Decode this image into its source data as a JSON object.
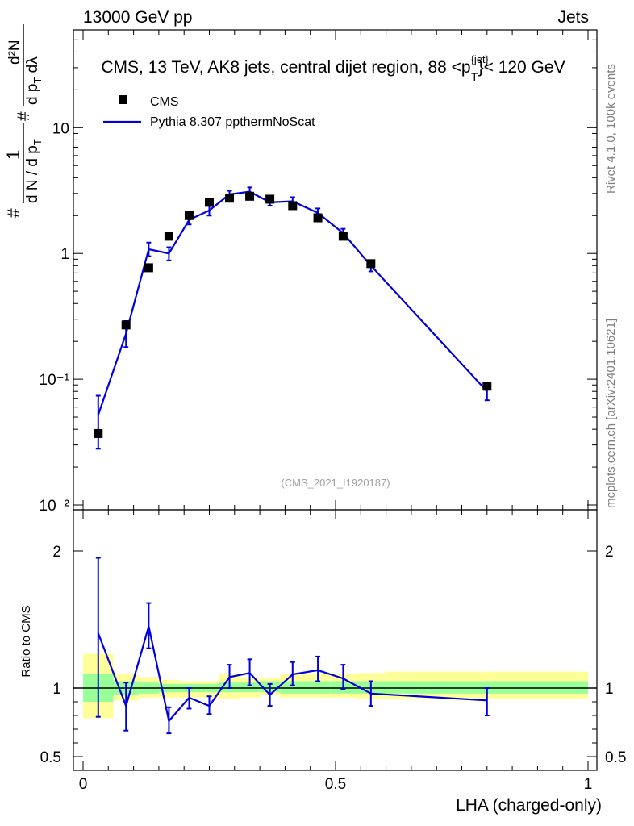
{
  "header": {
    "left": "13000 GeV pp",
    "right": "Jets"
  },
  "side_labels": {
    "rivet": "Rivet 4.1.0,  100k events",
    "mcplots": "mcplots.cern.ch [arXiv:2401.10621]"
  },
  "watermark": "(CMS_2021_I1920187)",
  "colors": {
    "data": "#000000",
    "mc": "#0000dd",
    "band_inner": "#99ff99",
    "band_outer": "#ffff99"
  },
  "chart_data": [
    {
      "type": "scatter",
      "panel": "main",
      "title": "CMS, 13 TeV, AK8 jets, central dijet region, 88 <p_T^{jet}< 120 GeV",
      "title_parts": {
        "pre": "CMS, 13 TeV, AK8 jets, central dijet region, 88 <p",
        "sup": "{jet}",
        "sub": "T",
        "post": "}< 120 GeV"
      },
      "ylabel_parts": {
        "num_hash": "#",
        "num_one": "1",
        "den": "d N / d p",
        "den_sub": "T",
        "right_hash": "#",
        "right_num": "d²N",
        "right_den": "d p",
        "right_den_sub": "T",
        "right_den_tail": " dλ"
      },
      "yscale": "log",
      "ylim": [
        0.01,
        60
      ],
      "xlim": [
        0,
        1
      ],
      "y_ticks": [
        {
          "v": 0.01,
          "label": "10⁻²"
        },
        {
          "v": 0.1,
          "label": "10⁻¹"
        },
        {
          "v": 1,
          "label": "1"
        },
        {
          "v": 10,
          "label": "10"
        }
      ],
      "legend": {
        "position": "top-left",
        "entries": [
          "CMS",
          "Pythia 8.307 ppthermNoScat"
        ]
      },
      "series": [
        {
          "name": "CMS",
          "style": "marker",
          "x": [
            0.03,
            0.085,
            0.13,
            0.17,
            0.21,
            0.25,
            0.29,
            0.33,
            0.37,
            0.415,
            0.465,
            0.515,
            0.57,
            0.8
          ],
          "y": [
            0.037,
            0.27,
            0.77,
            1.37,
            2.0,
            2.55,
            2.75,
            2.85,
            2.7,
            2.4,
            1.92,
            1.37,
            0.83,
            0.088
          ]
        },
        {
          "name": "Pythia 8.307 ppthermNoScat",
          "style": "line",
          "x": [
            0.03,
            0.085,
            0.13,
            0.17,
            0.21,
            0.25,
            0.29,
            0.33,
            0.37,
            0.415,
            0.465,
            0.515,
            0.57,
            0.8
          ],
          "y": [
            0.052,
            0.23,
            1.08,
            1.0,
            1.85,
            2.2,
            2.95,
            3.1,
            2.55,
            2.6,
            2.1,
            1.45,
            0.8,
            0.08
          ],
          "err_lo": [
            0.028,
            0.18,
            0.95,
            0.88,
            1.7,
            2.0,
            2.75,
            2.9,
            2.4,
            2.45,
            1.95,
            1.35,
            0.72,
            0.068
          ],
          "err_hi": [
            0.074,
            0.29,
            1.22,
            1.12,
            2.0,
            2.42,
            3.15,
            3.35,
            2.72,
            2.8,
            2.28,
            1.57,
            0.88,
            0.092
          ]
        }
      ]
    },
    {
      "type": "line",
      "panel": "ratio",
      "ylabel": "Ratio to CMS",
      "xlabel": "LHA (charged-only)",
      "xlim": [
        0,
        1
      ],
      "ylim": [
        0.4,
        2.3
      ],
      "y_ticks": [
        {
          "v": 0.5,
          "label": "0.5"
        },
        {
          "v": 1,
          "label": "1"
        },
        {
          "v": 2,
          "label": "2"
        }
      ],
      "x_ticks": [
        {
          "v": 0,
          "label": "0"
        },
        {
          "v": 0.5,
          "label": "0.5"
        },
        {
          "v": 1,
          "label": "1"
        }
      ],
      "bands": {
        "edges": [
          0,
          0.06,
          0.11,
          0.15,
          0.19,
          0.23,
          0.27,
          0.31,
          0.35,
          0.39,
          0.44,
          0.49,
          0.54,
          0.6,
          1.0
        ],
        "outer_lo": [
          0.78,
          0.91,
          0.93,
          0.93,
          0.93,
          0.93,
          0.92,
          0.93,
          0.95,
          0.93,
          0.93,
          0.93,
          0.92,
          0.92
        ],
        "outer_hi": [
          1.25,
          1.1,
          1.08,
          1.06,
          1.05,
          1.05,
          1.1,
          1.07,
          1.07,
          1.1,
          1.1,
          1.1,
          1.11,
          1.12
        ],
        "inner_lo": [
          0.9,
          0.95,
          0.96,
          0.97,
          0.97,
          0.97,
          0.97,
          0.97,
          0.97,
          0.96,
          0.96,
          0.96,
          0.96,
          0.96
        ],
        "inner_hi": [
          1.1,
          1.05,
          1.04,
          1.03,
          1.03,
          1.03,
          1.04,
          1.04,
          1.05,
          1.05,
          1.05,
          1.05,
          1.05,
          1.05
        ]
      },
      "series": [
        {
          "name": "Pythia 8.307 ppthermNoScat / CMS",
          "x": [
            0.03,
            0.085,
            0.13,
            0.17,
            0.21,
            0.25,
            0.29,
            0.33,
            0.37,
            0.415,
            0.465,
            0.515,
            0.57,
            0.8
          ],
          "y": [
            1.4,
            0.87,
            1.45,
            0.76,
            0.93,
            0.87,
            1.08,
            1.11,
            0.95,
            1.1,
            1.13,
            1.07,
            0.96,
            0.91
          ],
          "err_lo": [
            0.79,
            0.69,
            1.29,
            0.67,
            0.85,
            0.81,
            1.0,
            1.02,
            0.87,
            1.02,
            1.05,
            0.99,
            0.87,
            0.8
          ],
          "err_hi": [
            1.95,
            1.04,
            1.62,
            0.86,
            1.0,
            0.94,
            1.17,
            1.21,
            1.03,
            1.19,
            1.23,
            1.17,
            1.05,
            1.0
          ]
        }
      ]
    }
  ]
}
